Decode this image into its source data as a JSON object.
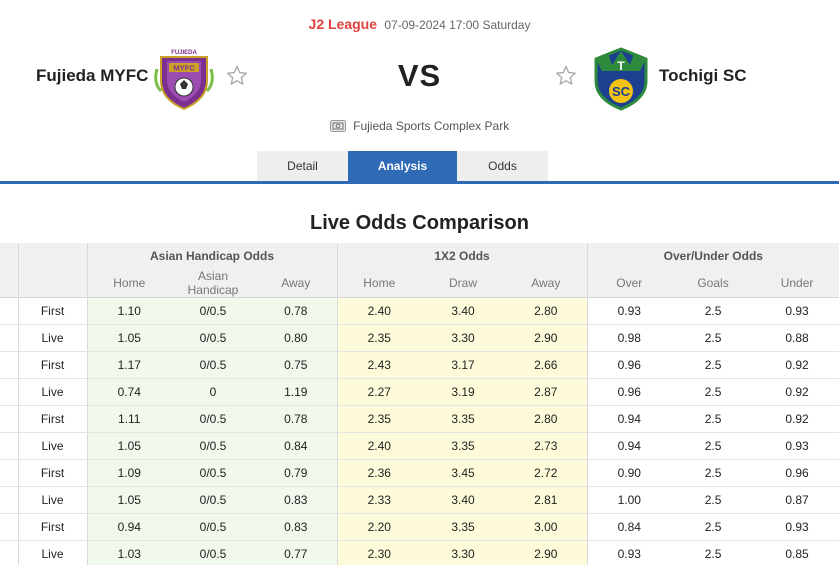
{
  "match": {
    "league": "J2 League",
    "datetime": "07-09-2024 17:00 Saturday",
    "home_team": "Fujieda MYFC",
    "away_team": "Tochigi SC",
    "vs_label": "VS",
    "venue": "Fujieda Sports Complex Park",
    "home_logo_text": "FUJIEDA",
    "home_logo_badge": "MYFC",
    "away_logo_text": "T",
    "away_logo_badge": "SC"
  },
  "tabs": [
    "Detail",
    "Analysis",
    "Odds"
  ],
  "active_tab": "Analysis",
  "section_title": "Live Odds Comparison",
  "table": {
    "groups": [
      "Asian Handicap Odds",
      "1X2 Odds",
      "Over/Under Odds"
    ],
    "subheaders": [
      "Home",
      "Asian Handicap",
      "Away",
      "Home",
      "Draw",
      "Away",
      "Over",
      "Goals",
      "Under"
    ],
    "rows": [
      {
        "label": "First",
        "cells": [
          "1.10",
          "0/0.5",
          "0.78",
          "2.40",
          "3.40",
          "2.80",
          "0.93",
          "2.5",
          "0.93"
        ]
      },
      {
        "label": "Live",
        "cells": [
          "1.05",
          "0/0.5",
          "0.80",
          "2.35",
          "3.30",
          "2.90",
          "0.98",
          "2.5",
          "0.88"
        ]
      },
      {
        "label": "First",
        "cells": [
          "1.17",
          "0/0.5",
          "0.75",
          "2.43",
          "3.17",
          "2.66",
          "0.96",
          "2.5",
          "0.92"
        ]
      },
      {
        "label": "Live",
        "cells": [
          "0.74",
          "0",
          "1.19",
          "2.27",
          "3.19",
          "2.87",
          "0.96",
          "2.5",
          "0.92"
        ]
      },
      {
        "label": "First",
        "cells": [
          "1.11",
          "0/0.5",
          "0.78",
          "2.35",
          "3.35",
          "2.80",
          "0.94",
          "2.5",
          "0.92"
        ]
      },
      {
        "label": "Live",
        "cells": [
          "1.05",
          "0/0.5",
          "0.84",
          "2.40",
          "3.35",
          "2.73",
          "0.94",
          "2.5",
          "0.93"
        ]
      },
      {
        "label": "First",
        "cells": [
          "1.09",
          "0/0.5",
          "0.79",
          "2.36",
          "3.45",
          "2.72",
          "0.90",
          "2.5",
          "0.96"
        ]
      },
      {
        "label": "Live",
        "cells": [
          "1.05",
          "0/0.5",
          "0.83",
          "2.33",
          "3.40",
          "2.81",
          "1.00",
          "2.5",
          "0.87"
        ]
      },
      {
        "label": "First",
        "cells": [
          "0.94",
          "0/0.5",
          "0.83",
          "2.20",
          "3.35",
          "3.00",
          "0.84",
          "2.5",
          "0.93"
        ]
      },
      {
        "label": "Live",
        "cells": [
          "1.03",
          "0/0.5",
          "0.77",
          "2.30",
          "3.30",
          "2.90",
          "0.93",
          "2.5",
          "0.85"
        ]
      }
    ]
  },
  "colors": {
    "accent": "#2f6ab5",
    "league": "#e0413d",
    "ah_bg": "#f1f8ec",
    "x12_bg": "#fdfbd9",
    "home_logo_primary": "#7b2f8e",
    "home_logo_secondary": "#c9a227",
    "away_logo_primary": "#1c3f8f",
    "away_logo_secondary": "#f2c315"
  },
  "icons": {
    "favorite": "star-outline-icon",
    "venue": "stadium-icon"
  }
}
